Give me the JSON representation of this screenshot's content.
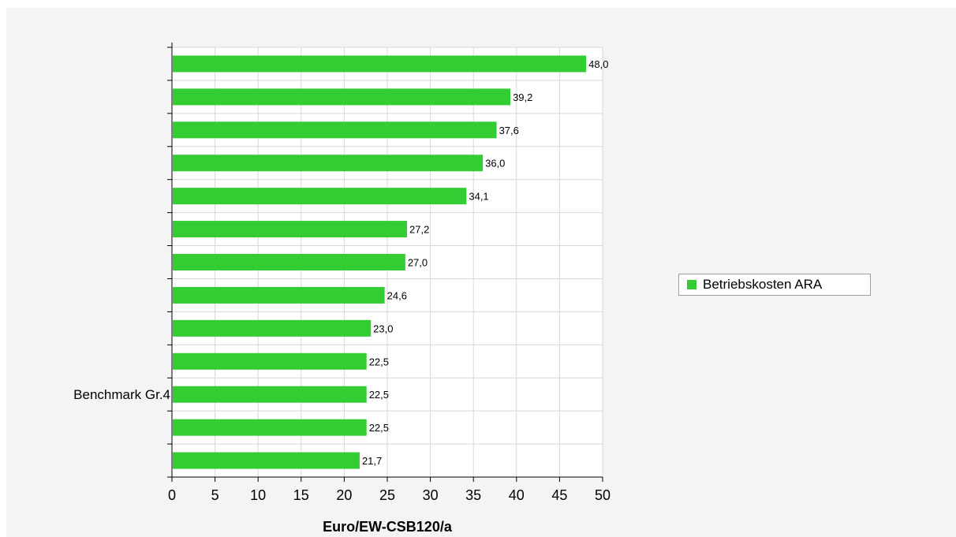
{
  "colors": {
    "bar": "#33cc33",
    "grid": "#d8d8d8",
    "axis": "#000000",
    "plot_background": "#ffffff",
    "panel_background": "#f4f4f4"
  },
  "chart_data": {
    "type": "bar",
    "orientation": "horizontal",
    "categories": [
      "",
      "",
      "",
      "",
      "",
      "",
      "",
      "",
      "",
      "",
      "Benchmark Gr.4",
      "",
      ""
    ],
    "series": [
      {
        "name": "Betriebskosten ARA",
        "values": [
          48.0,
          39.2,
          37.6,
          36.0,
          34.1,
          27.2,
          27.0,
          24.6,
          23.0,
          22.5,
          22.5,
          22.5,
          21.7
        ],
        "labels": [
          "48,0",
          "39,2",
          "37,6",
          "36,0",
          "34,1",
          "27,2",
          "27,0",
          "24,6",
          "23,0",
          "22,5",
          "22,5",
          "22,5",
          "21,7"
        ]
      }
    ],
    "xlabel": "Euro/EW-CSB120/a",
    "ylabel": "",
    "xlim": [
      0,
      50
    ],
    "xticks": [
      "0",
      "5",
      "10",
      "15",
      "20",
      "25",
      "30",
      "35",
      "40",
      "45",
      "50"
    ],
    "grid": true,
    "legend_position": "right"
  }
}
